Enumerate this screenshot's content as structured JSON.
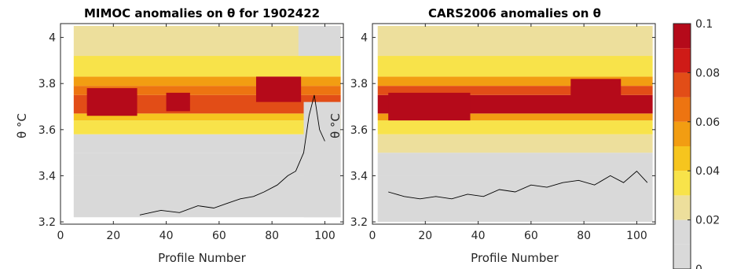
{
  "chart_data": [
    {
      "type": "heatmap",
      "title": "MIMOC anomalies on θ  for 1902422",
      "xlabel": "Profile Number",
      "ylabel": "θ °C",
      "xlim": [
        0,
        107
      ],
      "ylim": [
        3.19,
        4.06
      ],
      "xticks": [
        "0",
        "20",
        "40",
        "60",
        "80",
        "100"
      ],
      "yticks": [
        "3.2",
        "3.4",
        "3.6",
        "3.8",
        "4"
      ],
      "x_range": [
        5,
        106
      ],
      "theta_bands": [
        {
          "lo": 3.22,
          "hi": 3.4,
          "value": 0.003
        },
        {
          "lo": 3.4,
          "hi": 3.5,
          "value": 0.008
        },
        {
          "lo": 3.5,
          "hi": 3.58,
          "value": 0.018
        },
        {
          "lo": 3.58,
          "hi": 3.64,
          "value": 0.03
        },
        {
          "lo": 3.64,
          "hi": 3.67,
          "value": 0.045
        },
        {
          "lo": 3.67,
          "hi": 3.75,
          "value": 0.075
        },
        {
          "lo": 3.75,
          "hi": 3.79,
          "value": 0.065
        },
        {
          "lo": 3.79,
          "hi": 3.83,
          "value": 0.055
        },
        {
          "lo": 3.83,
          "hi": 3.92,
          "value": 0.035
        },
        {
          "lo": 3.92,
          "hi": 4.05,
          "value": 0.025
        }
      ],
      "hot_patches": [
        {
          "x": [
            10,
            29
          ],
          "y": [
            3.66,
            3.78
          ],
          "value": 0.1
        },
        {
          "x": [
            40,
            49
          ],
          "y": [
            3.68,
            3.76
          ],
          "value": 0.1
        },
        {
          "x": [
            74,
            91
          ],
          "y": [
            3.72,
            3.83
          ],
          "value": 0.1
        }
      ],
      "cool_patches": [
        {
          "x": [
            92,
            106
          ],
          "y": [
            3.22,
            3.72
          ],
          "value": 0.003
        },
        {
          "x": [
            90,
            106
          ],
          "y": [
            3.92,
            4.05
          ],
          "value": 0.002
        }
      ],
      "zero_contour": {
        "x": [
          30,
          38,
          45,
          52,
          58,
          63,
          68,
          73,
          77,
          82,
          86,
          89,
          92,
          94,
          96,
          98,
          100
        ],
        "y": [
          3.23,
          3.25,
          3.24,
          3.27,
          3.26,
          3.28,
          3.3,
          3.31,
          3.33,
          3.36,
          3.4,
          3.42,
          3.5,
          3.66,
          3.75,
          3.6,
          3.55
        ]
      }
    },
    {
      "type": "heatmap",
      "title": "CARS2006 anomalies on θ",
      "xlabel": "Profile Number",
      "ylabel": "θ °C",
      "xlim": [
        0,
        107
      ],
      "ylim": [
        3.19,
        4.06
      ],
      "xticks": [
        "0",
        "20",
        "40",
        "60",
        "80",
        "100"
      ],
      "yticks": [
        "3.2",
        "3.4",
        "3.6",
        "3.8",
        "4"
      ],
      "x_range": [
        2,
        106
      ],
      "theta_bands": [
        {
          "lo": 3.2,
          "hi": 3.4,
          "value": 0.003
        },
        {
          "lo": 3.4,
          "hi": 3.5,
          "value": 0.012
        },
        {
          "lo": 3.5,
          "hi": 3.58,
          "value": 0.022
        },
        {
          "lo": 3.58,
          "hi": 3.64,
          "value": 0.035
        },
        {
          "lo": 3.64,
          "hi": 3.67,
          "value": 0.05
        },
        {
          "lo": 3.67,
          "hi": 3.75,
          "value": 0.09
        },
        {
          "lo": 3.75,
          "hi": 3.79,
          "value": 0.07
        },
        {
          "lo": 3.79,
          "hi": 3.83,
          "value": 0.055
        },
        {
          "lo": 3.83,
          "hi": 3.92,
          "value": 0.035
        },
        {
          "lo": 3.92,
          "hi": 4.05,
          "value": 0.025
        }
      ],
      "hot_patches": [
        {
          "x": [
            6,
            37
          ],
          "y": [
            3.64,
            3.76
          ],
          "value": 0.1
        },
        {
          "x": [
            75,
            94
          ],
          "y": [
            3.72,
            3.82
          ],
          "value": 0.1
        }
      ],
      "cool_patches": [],
      "zero_contour": {
        "x": [
          6,
          12,
          18,
          24,
          30,
          36,
          42,
          48,
          54,
          60,
          66,
          72,
          78,
          84,
          90,
          95,
          100,
          104
        ],
        "y": [
          3.33,
          3.31,
          3.3,
          3.31,
          3.3,
          3.32,
          3.31,
          3.34,
          3.33,
          3.36,
          3.35,
          3.37,
          3.38,
          3.36,
          3.4,
          3.37,
          3.42,
          3.37
        ]
      }
    }
  ],
  "colorbar": {
    "ticks": [
      "0.1",
      "0.08",
      "0.06",
      "0.04",
      "0.02",
      "0"
    ],
    "values": [
      0.1,
      0.08,
      0.06,
      0.04,
      0.02,
      0
    ],
    "levels": 10
  },
  "colors": {
    "stops": [
      "#d9d9d9",
      "#d9d9d9",
      "#eddf9c",
      "#f8e34a",
      "#f6c51e",
      "#f29d12",
      "#ed7411",
      "#e24d17",
      "#cf1b17",
      "#b50a1a"
    ]
  }
}
